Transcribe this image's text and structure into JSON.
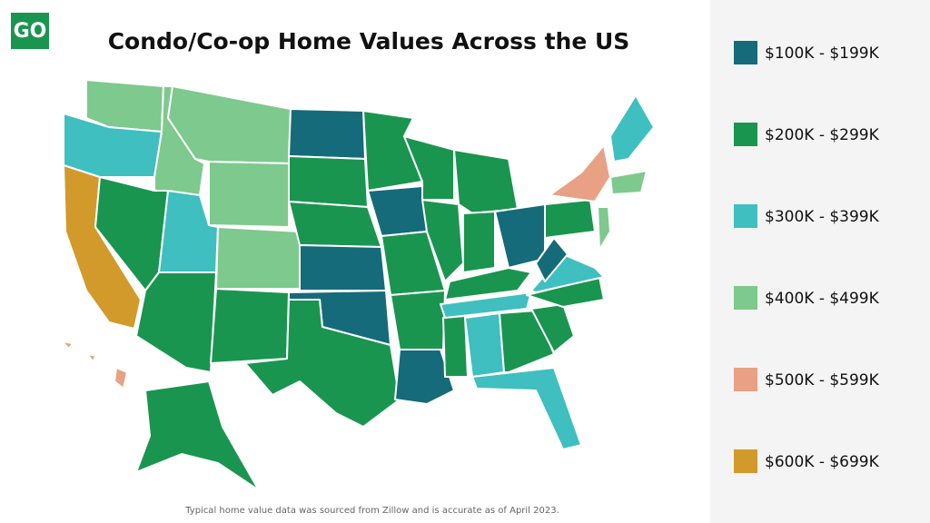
{
  "logo": "GO",
  "title": "Condo/Co-op Home Values Across the US",
  "legend": [
    {
      "label": "$100K - $199K",
      "color": "#156b7a"
    },
    {
      "label": "$200K - $299K",
      "color": "#1a9550"
    },
    {
      "label": "$300K - $399K",
      "color": "#3fbfbf"
    },
    {
      "label": "$400K - $499K",
      "color": "#7ec98e"
    },
    {
      "label": "$500K - $599K",
      "color": "#e8a184"
    },
    {
      "label": "$600K - $699K",
      "color": "#d19a2a"
    }
  ],
  "footnote": "Typical home value data was sourced from Zillow and is accurate as of April 2023."
}
